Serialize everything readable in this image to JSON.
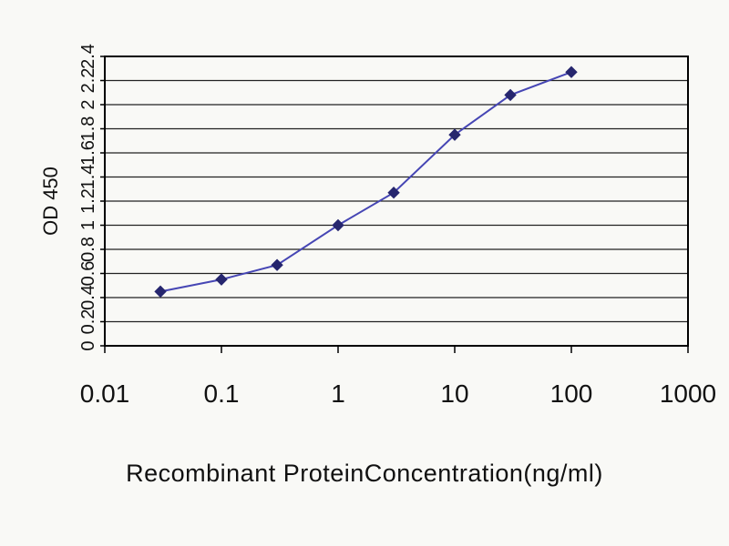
{
  "chart_data": {
    "type": "line",
    "title": "",
    "xlabel": "Recombinant ProteinConcentration(ng/ml)",
    "ylabel": "OD 450",
    "x_scale": "log",
    "xlim": [
      0.01,
      1000
    ],
    "ylim": [
      0,
      2.4
    ],
    "x_ticks": [
      0.01,
      0.1,
      1,
      10,
      100,
      1000
    ],
    "y_ticks": [
      0,
      0.2,
      0.4,
      0.6,
      0.8,
      1,
      1.2,
      1.4,
      1.6,
      1.8,
      2,
      2.2,
      2.4
    ],
    "x": [
      0.03,
      0.1,
      0.3,
      1,
      3,
      10,
      30,
      100
    ],
    "y": [
      0.45,
      0.55,
      0.67,
      1.0,
      1.27,
      1.75,
      2.08,
      2.27
    ],
    "grid": "horizontal",
    "legend": "none",
    "line_color": "#4646b4",
    "marker": "diamond",
    "marker_color": "#26266e",
    "grid_color": "#222222",
    "axis_color": "#000000",
    "background": "#f9f9f6"
  }
}
